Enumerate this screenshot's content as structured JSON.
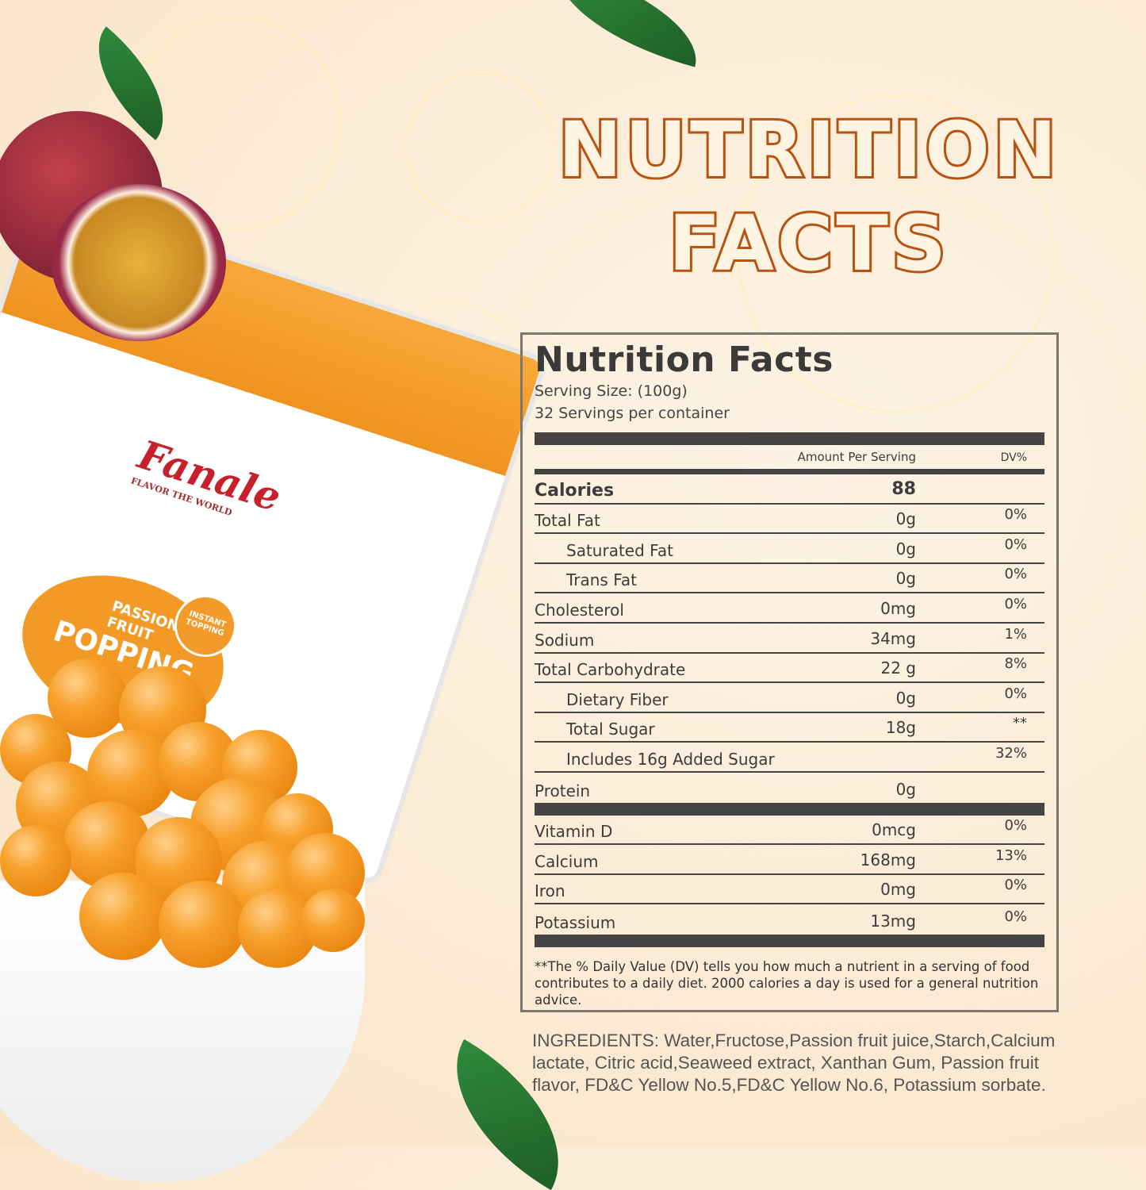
{
  "hero_title": [
    "NUTRITION",
    "FACTS"
  ],
  "product": {
    "brand": "Fanale",
    "tagline": "FLAVOR THE WORLD",
    "flavor": "PASSION FRUIT",
    "name": "POPPING",
    "badge": "INSTANT TOPPING"
  },
  "label": {
    "title": "Nutrition Facts",
    "serving_size": "Serving Size:  (100g)",
    "servings": "32 Servings per container",
    "col_amount": "Amount Per Serving",
    "col_dv": "DV%",
    "rows": [
      {
        "name": "Calories",
        "amount": "88",
        "dv": ""
      },
      {
        "name": "Total Fat",
        "amount": "0g",
        "dv": "0%"
      },
      {
        "name": "Saturated Fat",
        "amount": "0g",
        "dv": "0%"
      },
      {
        "name": "Trans Fat",
        "amount": "0g",
        "dv": "0%"
      },
      {
        "name": "Cholesterol",
        "amount": "0mg",
        "dv": "0%"
      },
      {
        "name": "Sodium",
        "amount": "34mg",
        "dv": "1%"
      },
      {
        "name": "Total Carbohydrate",
        "amount": "22 g",
        "dv": "8%"
      },
      {
        "name": "Dietary Fiber",
        "amount": "0g",
        "dv": "0%"
      },
      {
        "name": "Total Sugar",
        "amount": "18g",
        "dv": "**"
      },
      {
        "name": "Includes 16g Added Sugar",
        "amount": "",
        "dv": "32%"
      },
      {
        "name": "Protein",
        "amount": "0g",
        "dv": ""
      }
    ],
    "minerals": [
      {
        "name": "Vitamin D",
        "amount": "0mcg",
        "dv": "0%"
      },
      {
        "name": "Calcium",
        "amount": "168mg",
        "dv": "13%"
      },
      {
        "name": "Iron",
        "amount": "0mg",
        "dv": "0%"
      },
      {
        "name": "Potassium",
        "amount": "13mg",
        "dv": "0%"
      }
    ],
    "footnote": "**The % Daily Value (DV) tells you how much a nutrient in a serving of food contributes to a daily diet. 2000 calories a  day is used for a general nutrition advice."
  },
  "ingredients": "INGREDIENTS: Water,Fructose,Passion fruit juice,Starch,Calcium lactate, Citric acid,Seaweed extract, Xanthan Gum, Passion fruit flavor, FD&C Yellow No.5,FD&C Yellow No.6, Potassium sorbate."
}
